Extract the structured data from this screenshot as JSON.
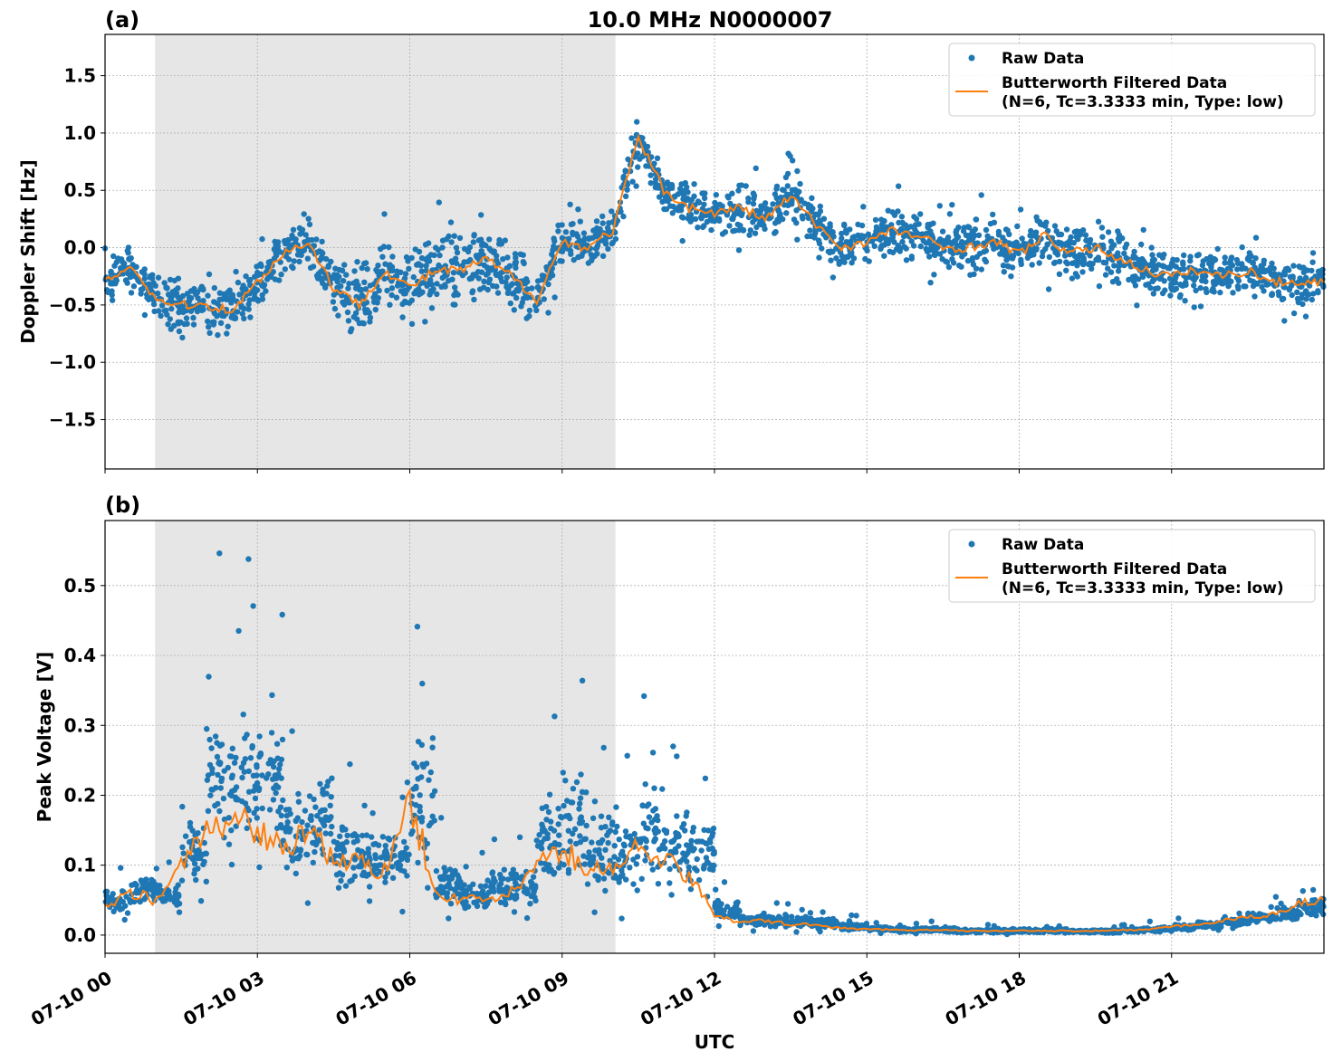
{
  "title": "10.0 MHz N0000007",
  "colors": {
    "raw": "#1f77b4",
    "filtered": "#ff7f0e",
    "night_shade": "#e6e6e6"
  },
  "chart_data": [
    {
      "type": "scatter",
      "panel_label": "(a)",
      "ylabel": "Doppler Shift [Hz]",
      "ylim": [
        -1.93,
        1.86
      ],
      "yticks": [
        -1.5,
        -1.0,
        -0.5,
        0.0,
        0.5,
        1.0,
        1.5
      ],
      "ytick_labels": [
        "−1.5",
        "−1.0",
        "−0.5",
        "0.0",
        "0.5",
        "1.0",
        "1.5"
      ],
      "grid": true,
      "shaded_span": [
        "07-10 00:59",
        "07-10 10:03"
      ],
      "legend_position": "top-right",
      "legend": [
        "Raw Data",
        "Butterworth Filtered Data",
        "(N=6, Tc=3.3333 min, Type: low)"
      ],
      "x_hours": [
        0,
        0.5,
        1,
        1.5,
        2,
        2.5,
        3,
        3.5,
        4,
        4.5,
        5,
        5.5,
        6,
        6.5,
        7,
        7.5,
        8,
        8.5,
        9,
        9.5,
        10,
        10.5,
        11,
        11.5,
        12,
        12.5,
        13,
        13.5,
        14,
        14.5,
        15,
        15.5,
        16,
        16.5,
        17,
        17.5,
        18,
        18.5,
        19,
        19.5,
        20,
        20.5,
        21,
        21.5,
        22,
        22.5,
        23,
        23.5,
        24
      ],
      "series": [
        {
          "name": "Butterworth Filtered Data",
          "values": [
            -0.3,
            -0.15,
            -0.45,
            -0.5,
            -0.5,
            -0.55,
            -0.3,
            -0.05,
            0.05,
            -0.35,
            -0.5,
            -0.2,
            -0.35,
            -0.2,
            -0.2,
            -0.1,
            -0.25,
            -0.45,
            0.05,
            0.0,
            0.15,
            0.95,
            0.5,
            0.35,
            0.3,
            0.35,
            0.25,
            0.45,
            0.2,
            0.0,
            0.05,
            0.15,
            0.1,
            0.0,
            0.0,
            0.05,
            -0.05,
            0.1,
            -0.05,
            0.0,
            -0.1,
            -0.2,
            -0.25,
            -0.2,
            -0.25,
            -0.2,
            -0.3,
            -0.3,
            -0.3
          ]
        },
        {
          "name": "Raw Data",
          "spread": [
            0.35,
            0.3,
            0.45,
            0.35,
            0.4,
            0.35,
            0.35,
            0.35,
            0.4,
            0.55,
            0.5,
            0.45,
            0.6,
            0.6,
            0.5,
            0.45,
            0.5,
            0.4,
            0.35,
            0.35,
            0.35,
            0.3,
            0.35,
            0.35,
            0.4,
            0.45,
            0.4,
            0.4,
            0.35,
            0.35,
            0.35,
            0.45,
            0.4,
            0.4,
            0.45,
            0.4,
            0.4,
            0.45,
            0.4,
            0.45,
            0.4,
            0.35,
            0.35,
            0.35,
            0.35,
            0.35,
            0.35,
            0.35,
            0.3
          ]
        }
      ]
    },
    {
      "type": "scatter",
      "panel_label": "(b)",
      "ylabel": "Peak Voltage [V]",
      "xlabel": "UTC",
      "ylim": [
        -0.026,
        0.593
      ],
      "yticks": [
        0.0,
        0.1,
        0.2,
        0.3,
        0.4,
        0.5
      ],
      "ytick_labels": [
        "0.0",
        "0.1",
        "0.2",
        "0.3",
        "0.4",
        "0.5"
      ],
      "xticks": [
        "07-10 00",
        "07-10 03",
        "07-10 06",
        "07-10 09",
        "07-10 12",
        "07-10 15",
        "07-10 18",
        "07-10 21"
      ],
      "xlim": [
        "07-10 00:00",
        "07-11 00:00"
      ],
      "grid": true,
      "shaded_span": [
        "07-10 00:59",
        "07-10 10:03"
      ],
      "legend_position": "top-right",
      "legend": [
        "Raw Data",
        "Butterworth Filtered Data",
        "(N=6, Tc=3.3333 min, Type: low)"
      ],
      "x_hours": [
        0,
        0.5,
        1,
        1.5,
        2,
        2.5,
        3,
        3.5,
        4,
        4.5,
        5,
        5.5,
        6,
        6.5,
        7,
        7.5,
        8,
        8.5,
        9,
        9.5,
        10,
        10.5,
        11,
        11.5,
        12,
        12.5,
        13,
        13.5,
        14,
        14.5,
        15,
        15.5,
        16,
        16.5,
        17,
        17.5,
        18,
        18.5,
        19,
        19.5,
        20,
        20.5,
        21,
        21.5,
        22,
        22.5,
        23,
        23.5,
        24
      ],
      "series": [
        {
          "name": "Butterworth Filtered Data",
          "values": [
            0.04,
            0.06,
            0.05,
            0.1,
            0.15,
            0.17,
            0.15,
            0.12,
            0.15,
            0.1,
            0.11,
            0.09,
            0.2,
            0.06,
            0.05,
            0.05,
            0.06,
            0.1,
            0.12,
            0.1,
            0.09,
            0.13,
            0.11,
            0.08,
            0.03,
            0.02,
            0.02,
            0.015,
            0.015,
            0.01,
            0.008,
            0.008,
            0.007,
            0.007,
            0.006,
            0.006,
            0.006,
            0.006,
            0.006,
            0.006,
            0.007,
            0.008,
            0.012,
            0.015,
            0.02,
            0.025,
            0.03,
            0.045,
            0.05
          ]
        },
        {
          "name": "Raw Data",
          "max": [
            0.1,
            0.13,
            0.11,
            0.27,
            0.55,
            0.54,
            0.53,
            0.33,
            0.37,
            0.27,
            0.22,
            0.25,
            0.49,
            0.17,
            0.12,
            0.15,
            0.15,
            0.35,
            0.41,
            0.29,
            0.27,
            0.37,
            0.31,
            0.3,
            0.08,
            0.05,
            0.05,
            0.05,
            0.04,
            0.03,
            0.02,
            0.02,
            0.02,
            0.015,
            0.015,
            0.015,
            0.015,
            0.015,
            0.012,
            0.012,
            0.015,
            0.02,
            0.025,
            0.03,
            0.04,
            0.05,
            0.06,
            0.08,
            0.1
          ],
          "min": [
            0.02,
            0.03,
            0.03,
            0.04,
            0.05,
            0.06,
            0.05,
            0.04,
            0.05,
            0.03,
            0.04,
            0.03,
            0.03,
            0.02,
            0.02,
            0.02,
            0.02,
            0.03,
            0.03,
            0.02,
            0.02,
            0.02,
            0.02,
            0.02,
            0.01,
            0.005,
            0.005,
            0.003,
            0.003,
            0.002,
            0.002,
            0.001,
            0.001,
            0.001,
            0.001,
            0.001,
            0.001,
            0.001,
            0.001,
            0.001,
            0.001,
            0.002,
            0.003,
            0.005,
            0.008,
            0.01,
            0.012,
            0.015,
            0.02
          ]
        }
      ]
    }
  ]
}
